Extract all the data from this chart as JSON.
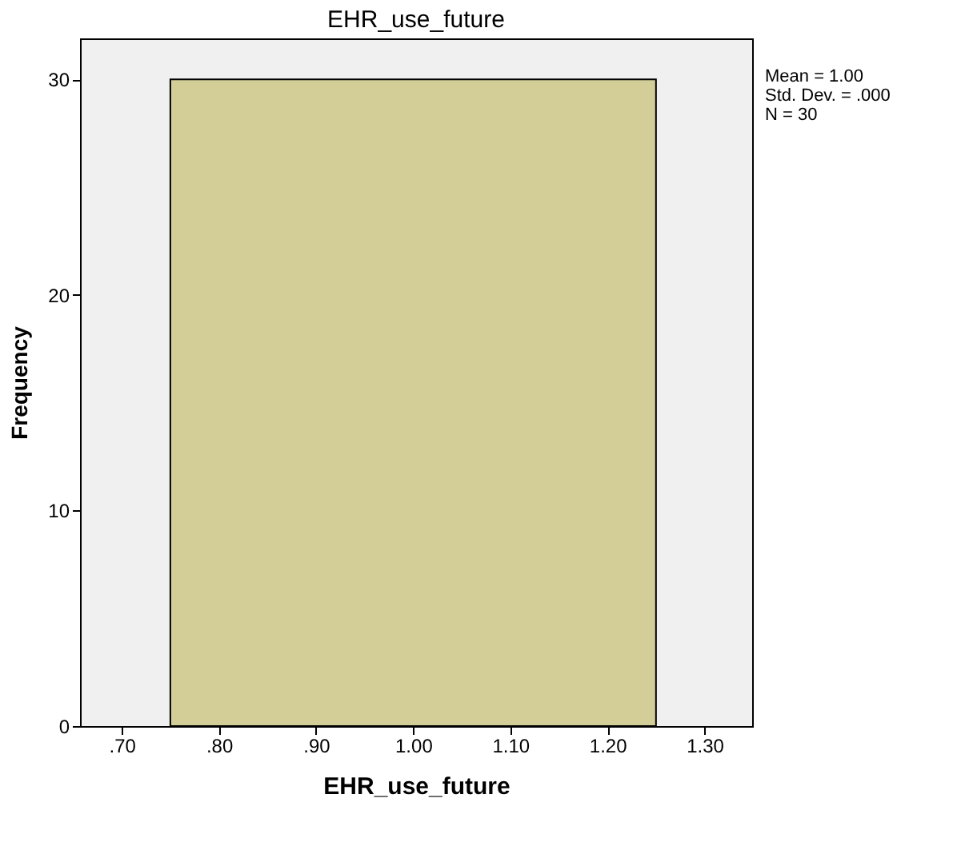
{
  "chart_data": {
    "type": "histogram",
    "title": "EHR_use_future",
    "xlabel": "EHR_use_future",
    "ylabel": "Frequency",
    "bins": [
      0.75,
      1.25
    ],
    "values": [
      30
    ],
    "color": "#d3ce97",
    "xlim": [
      0.657,
      1.349
    ],
    "ylim": [
      0,
      31.9
    ],
    "xticks": [
      {
        "value": 0.7,
        "label": ".70"
      },
      {
        "value": 0.8,
        "label": ".80"
      },
      {
        "value": 0.9,
        "label": ".90"
      },
      {
        "value": 1.0,
        "label": "1.00"
      },
      {
        "value": 1.1,
        "label": "1.10"
      },
      {
        "value": 1.2,
        "label": "1.20"
      },
      {
        "value": 1.3,
        "label": "1.30"
      }
    ],
    "yticks": [
      0,
      10,
      20,
      30
    ],
    "grid": false,
    "annotations": [
      "Mean = 1.00",
      "Std. Dev. = .000",
      "N = 30"
    ]
  }
}
